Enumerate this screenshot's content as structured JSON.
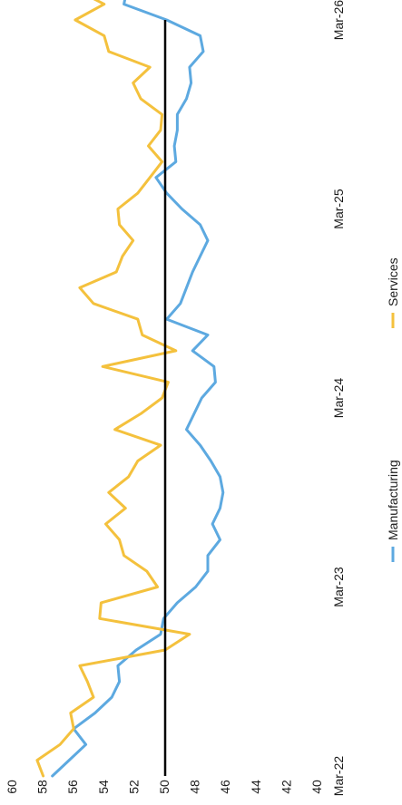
{
  "chart_data": {
    "type": "line",
    "orientation": "rotated-90-clockwise",
    "title": "",
    "xlabel": "",
    "ylabel": "",
    "ylim": [
      40,
      60
    ],
    "y_ticks": [
      "40",
      "42",
      "44",
      "46",
      "48",
      "50",
      "52",
      "54",
      "56",
      "58",
      "60"
    ],
    "x_ticks": [
      "Mar-22",
      "Mar-23",
      "Mar-24",
      "Mar-25",
      "Mar-26"
    ],
    "x_start": "2022-03",
    "reference_line": 50,
    "reference_color": "#000000",
    "legend": "bottom",
    "grid": false,
    "series": [
      {
        "name": "Manufacturing",
        "color": "#5DA9E0",
        "values": [
          57.4,
          56.3,
          55.2,
          56.0,
          54.6,
          53.5,
          53.0,
          53.1,
          51.9,
          50.3,
          50.1,
          49.2,
          48.0,
          47.2,
          47.2,
          46.4,
          46.9,
          46.4,
          46.2,
          46.4,
          47.0,
          47.7,
          48.6,
          48.1,
          47.6,
          46.7,
          46.8,
          48.2,
          47.2,
          49.9,
          49.0,
          48.6,
          48.2,
          47.7,
          47.2,
          47.7,
          48.9,
          49.9,
          50.6,
          49.3,
          49.4,
          49.2,
          49.2,
          48.6,
          48.3,
          48.4,
          47.5,
          47.7,
          49.9,
          52.7,
          52.5
        ]
      },
      {
        "name": "Services",
        "color": "#F4C13D",
        "values": [
          58.0,
          58.4,
          56.9,
          56.0,
          56.2,
          54.7,
          55.1,
          55.6,
          50.0,
          48.4,
          54.3,
          54.2,
          50.5,
          51.2,
          52.7,
          53.0,
          53.9,
          52.6,
          53.7,
          52.4,
          51.8,
          50.3,
          53.3,
          51.6,
          50.2,
          49.8,
          54.1,
          49.3,
          51.5,
          51.8,
          54.7,
          55.6,
          53.2,
          52.8,
          52.1,
          53.0,
          53.1,
          51.8,
          51.0,
          50.2,
          51.1,
          50.3,
          50.2,
          51.6,
          52.1,
          51.0,
          53.7,
          54.0,
          55.9,
          54.0,
          56.0,
          54.4
        ]
      }
    ]
  }
}
